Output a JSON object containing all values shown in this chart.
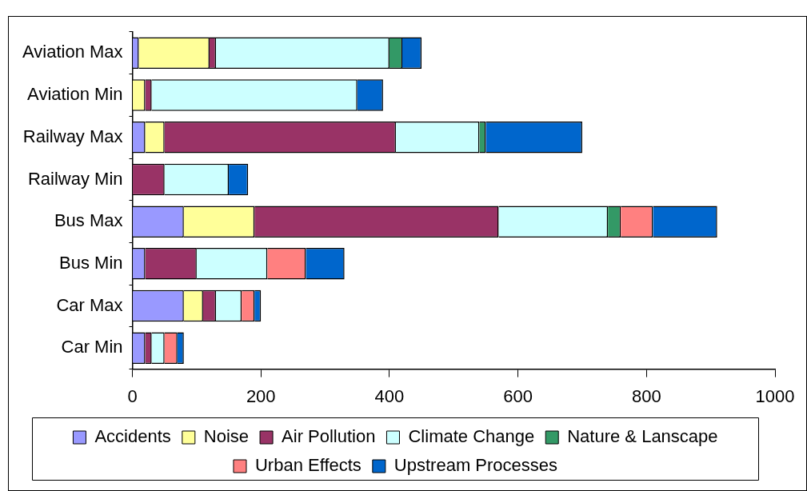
{
  "chart_data": {
    "type": "bar",
    "orientation": "horizontal",
    "stacked": true,
    "categories": [
      "Aviation Max",
      "Aviation Min",
      "Railway Max",
      "Railway Min",
      "Bus Max",
      "Bus Min",
      "Car Max",
      "Car Min"
    ],
    "series": [
      {
        "name": "Accidents",
        "color": "#9999ff",
        "values": [
          10,
          0,
          20,
          0,
          80,
          20,
          80,
          20
        ]
      },
      {
        "name": "Noise",
        "color": "#ffff99",
        "values": [
          110,
          20,
          30,
          0,
          110,
          0,
          30,
          0
        ]
      },
      {
        "name": "Air Pollution",
        "color": "#993366",
        "values": [
          10,
          10,
          360,
          50,
          380,
          80,
          20,
          10
        ]
      },
      {
        "name": "Climate Change",
        "color": "#ccffff",
        "values": [
          270,
          320,
          130,
          100,
          170,
          110,
          40,
          20
        ]
      },
      {
        "name": "Nature & Lanscape",
        "color": "#339966",
        "values": [
          20,
          0,
          10,
          0,
          20,
          0,
          0,
          0
        ]
      },
      {
        "name": "Urban Effects",
        "color": "#ff8080",
        "values": [
          0,
          0,
          0,
          0,
          50,
          60,
          20,
          20
        ]
      },
      {
        "name": "Upstream Processes",
        "color": "#0066cc",
        "values": [
          30,
          40,
          150,
          30,
          100,
          60,
          10,
          10
        ]
      }
    ],
    "xlim": [
      0,
      1000
    ],
    "xticks": [
      0,
      200,
      400,
      600,
      800,
      1000
    ],
    "grid": false,
    "legend": "bottom"
  }
}
